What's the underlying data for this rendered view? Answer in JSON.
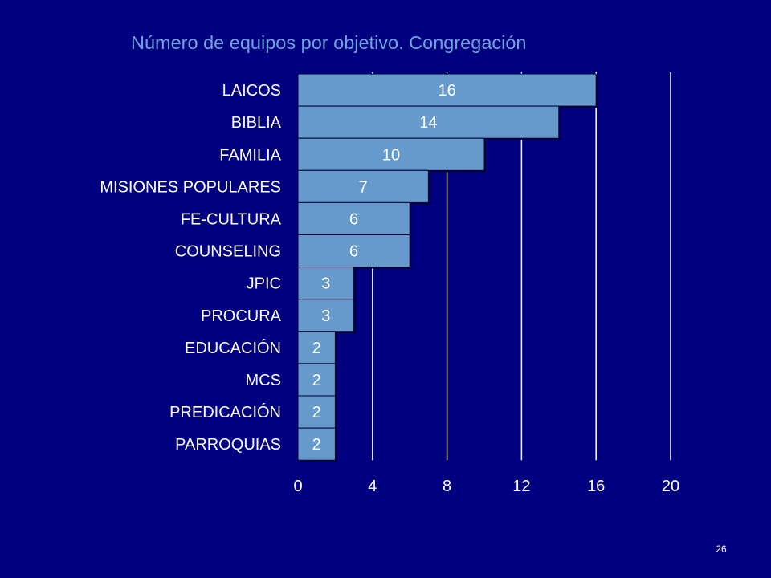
{
  "slide": {
    "page_number": "26"
  },
  "colors": {
    "background": "#000080",
    "title": "#6fa3e0",
    "bar_fill": "#6699cc",
    "bar_stroke": "#000033",
    "gridline": "#ffffff",
    "text": "#ffffff",
    "label_text": "#000000"
  },
  "chart_data": {
    "type": "bar",
    "orientation": "horizontal",
    "title": "Número de equipos por objetivo. Congregación",
    "xlabel": "",
    "ylabel": "",
    "categories": [
      "LAICOS",
      "BIBLIA",
      "FAMILIA",
      "MISIONES POPULARES",
      "FE-CULTURA",
      "COUNSELING",
      "JPIC",
      "PROCURA",
      "EDUCACIÓN",
      "MCS",
      "PREDICACIÓN",
      "PARROQUIAS"
    ],
    "values": [
      16,
      14,
      10,
      7,
      6,
      6,
      3,
      3,
      2,
      2,
      2,
      2
    ],
    "xlim": [
      0,
      20
    ],
    "x_ticks": [
      "0",
      "4",
      "8",
      "12",
      "16",
      "20"
    ],
    "grid": "vertical",
    "legend": "none",
    "data_labels": "inside"
  }
}
